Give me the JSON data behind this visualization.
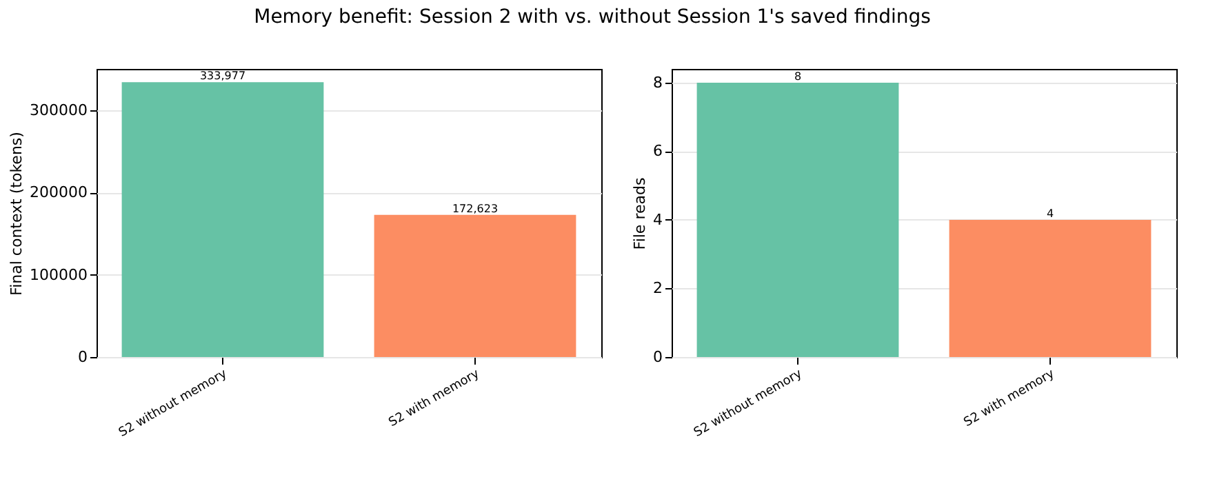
{
  "chart_data": [
    {
      "type": "bar",
      "title": "Memory benefit: Session 2 with vs. without Session 1's saved findings",
      "categories": [
        "S2 without memory",
        "S2 with memory"
      ],
      "values": [
        333977,
        172623
      ],
      "colors": [
        "#66c2a5",
        "#fc8d62"
      ],
      "value_labels": [
        "333,977",
        "172,623"
      ],
      "ylabel": "Final context (tokens)",
      "ylim": [
        0,
        350000
      ],
      "yticks": [
        0,
        100000,
        200000,
        300000
      ],
      "grid": "y"
    },
    {
      "type": "bar",
      "categories": [
        "S2 without memory",
        "S2 with memory"
      ],
      "values": [
        8,
        4
      ],
      "colors": [
        "#66c2a5",
        "#fc8d62"
      ],
      "data_labels": true,
      "ylabel": "File reads",
      "ylim": [
        0,
        8.4
      ],
      "yticks": [
        0,
        2,
        4,
        6,
        8
      ],
      "grid": "y"
    }
  ]
}
